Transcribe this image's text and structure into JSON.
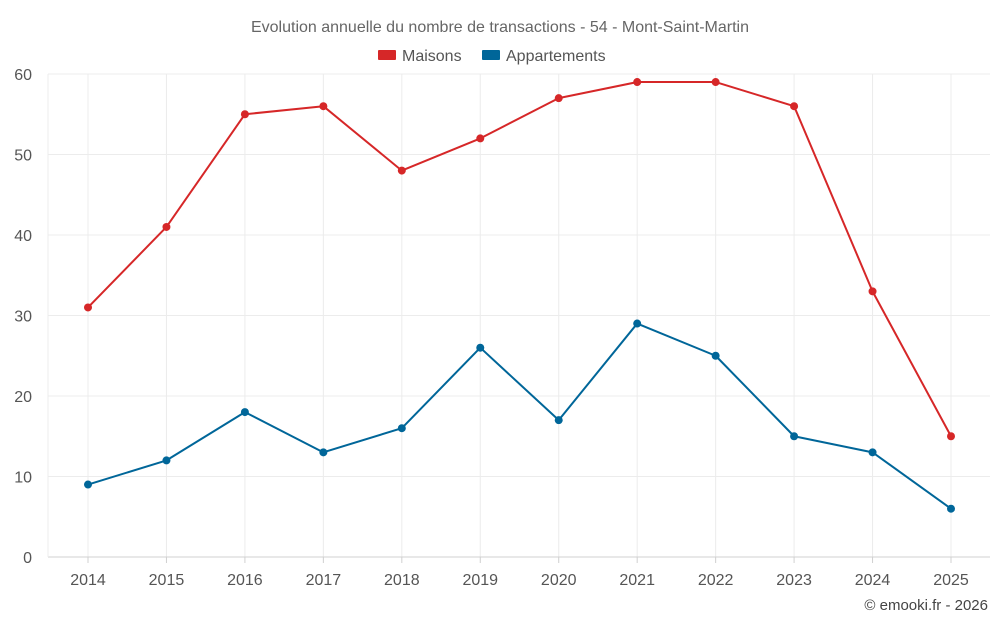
{
  "chart_data": {
    "type": "line",
    "title": "Evolution annuelle du nombre de transactions - 54 - Mont-Saint-Martin",
    "xlabel": "",
    "ylabel": "",
    "categories": [
      "2014",
      "2015",
      "2016",
      "2017",
      "2018",
      "2019",
      "2020",
      "2021",
      "2022",
      "2023",
      "2024",
      "2025"
    ],
    "ylim": [
      0,
      60
    ],
    "yticks": [
      0,
      10,
      20,
      30,
      40,
      50,
      60
    ],
    "grid": true,
    "legend_position": "top-center",
    "series": [
      {
        "name": "Maisons",
        "color": "#d62728",
        "values": [
          31,
          41,
          55,
          56,
          48,
          52,
          57,
          59,
          59,
          56,
          33,
          15
        ]
      },
      {
        "name": "Appartements",
        "color": "#006699",
        "values": [
          9,
          12,
          18,
          13,
          16,
          26,
          17,
          29,
          25,
          15,
          13,
          6
        ]
      }
    ]
  },
  "credit": "© emooki.fr - 2026"
}
